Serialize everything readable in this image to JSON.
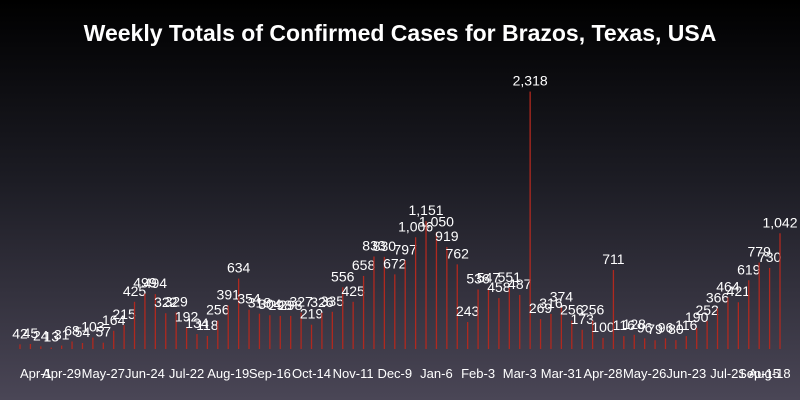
{
  "chart_data": {
    "type": "bar",
    "title": "Weekly Totals of Confirmed Cases for Brazos, Texas, USA",
    "xlabel": "",
    "ylabel": "",
    "ylim": [
      0,
      2350
    ],
    "grid": false,
    "bar_color": "#b0291f",
    "background_top": "#000000",
    "background_bottom": "#4a4656",
    "text_color": "#ffffff",
    "tick_labels": [
      "Apr-1",
      "Apr-29",
      "May-27",
      "Jun-24",
      "Jul-22",
      "Aug-19",
      "Sep-16",
      "Oct-14",
      "Nov-11",
      "Dec-9",
      "Jan-6",
      "Feb-3",
      "Mar-3",
      "Mar-31",
      "Apr-28",
      "May-26",
      "Jun-23",
      "Jul-21",
      "Aug-18",
      "Sep-15"
    ],
    "series": [
      {
        "values": [
          42,
          45,
          24,
          13,
          31,
          68,
          54,
          103,
          57,
          164,
          215,
          425,
          499,
          494,
          322,
          329,
          192,
          134,
          118,
          256,
          391,
          634,
          354,
          318,
          304,
          298,
          298,
          327,
          219,
          326,
          335,
          556,
          425,
          658,
          833,
          830,
          672,
          797,
          1006,
          1151,
          1050,
          919,
          762,
          243,
          536,
          547,
          458,
          551,
          487,
          2318,
          269,
          316,
          374,
          256,
          173,
          256,
          100,
          711,
          116,
          128,
          96,
          79,
          96,
          80,
          116,
          190,
          252,
          366,
          464,
          421,
          619,
          779,
          730,
          1042
        ],
        "labels": [
          "42",
          "45",
          "24",
          "13",
          "31",
          "68",
          "54",
          "103",
          "57",
          "164",
          "215",
          "425",
          "499",
          "494",
          "322",
          "329",
          "192",
          "134",
          "118",
          "256",
          "391",
          "634",
          "354",
          "318",
          "304",
          "298",
          "298",
          "327",
          "219",
          "326",
          "335",
          "556",
          "425",
          "658",
          "833",
          "830",
          "672",
          "797",
          "1,006",
          "1,151",
          "1,050",
          "919",
          "762",
          "243",
          "536",
          "547",
          "458",
          "551",
          "487",
          "2,318",
          "269",
          "316",
          "374",
          "256",
          "173",
          "256",
          "100",
          "711",
          "116",
          "128",
          "96",
          "79",
          "96",
          "80",
          "116",
          "190",
          "252",
          "366",
          "464",
          "421",
          "619",
          "779",
          "730",
          "1,042"
        ]
      }
    ]
  }
}
